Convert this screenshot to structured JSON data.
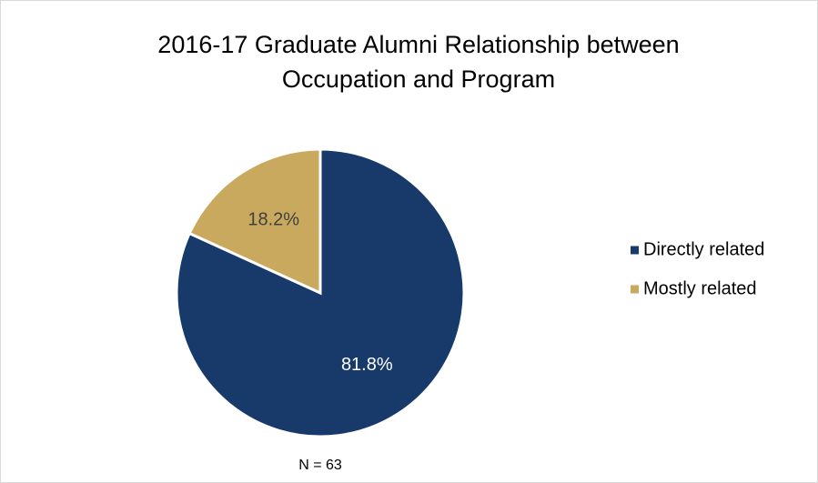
{
  "chart_data": {
    "type": "pie",
    "title": "2016-17 Graduate Alumni Relationship between Occupation and Program",
    "categories": [
      "Directly related",
      "Mostly related"
    ],
    "values": [
      81.8,
      18.2
    ],
    "value_labels": [
      "81.8%",
      "18.2%"
    ],
    "colors": [
      "#173a6a",
      "#c9a95d"
    ],
    "label_colors": [
      "#ffffff",
      "#404040"
    ],
    "annotation": "N = 63",
    "legend": "right"
  }
}
